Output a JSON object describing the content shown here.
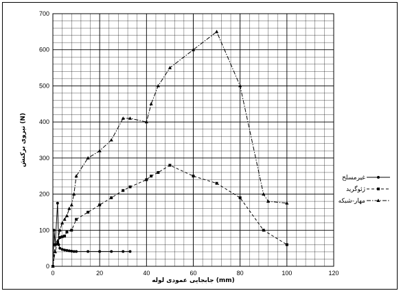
{
  "chart_data": {
    "type": "line",
    "title": "",
    "xlabel": "جابجایی عمودی لوله (mm)",
    "ylabel": "نیروی برکنش (N)",
    "xlim": [
      0,
      120
    ],
    "ylim": [
      0,
      700
    ],
    "x_ticks": [
      0,
      20,
      40,
      60,
      80,
      100,
      120
    ],
    "y_ticks": [
      0,
      100,
      200,
      300,
      400,
      500,
      600,
      700
    ],
    "grid": "on",
    "legend_position": "right",
    "series": [
      {
        "name": "غیرمسلح",
        "marker": "circle",
        "dash": "solid",
        "points": [
          [
            0,
            0
          ],
          [
            0.5,
            100
          ],
          [
            1,
            60
          ],
          [
            2,
            175
          ],
          [
            2.5,
            60
          ],
          [
            3,
            50
          ],
          [
            4,
            47
          ],
          [
            5,
            45
          ],
          [
            6,
            44
          ],
          [
            7,
            43
          ],
          [
            8,
            42
          ],
          [
            9,
            41
          ],
          [
            10,
            41
          ],
          [
            15,
            41
          ],
          [
            20,
            41
          ],
          [
            25,
            41
          ],
          [
            30,
            41
          ],
          [
            33,
            41
          ]
        ]
      },
      {
        "name": "ژئوگرید",
        "marker": "square",
        "dash": "dashed",
        "points": [
          [
            0,
            0
          ],
          [
            1,
            60
          ],
          [
            2,
            62
          ],
          [
            3,
            80
          ],
          [
            4,
            82
          ],
          [
            5,
            84
          ],
          [
            6,
            95
          ],
          [
            8,
            100
          ],
          [
            10,
            130
          ],
          [
            15,
            150
          ],
          [
            20,
            170
          ],
          [
            25,
            190
          ],
          [
            30,
            210
          ],
          [
            33,
            220
          ],
          [
            40,
            240
          ],
          [
            42,
            250
          ],
          [
            45,
            260
          ],
          [
            50,
            280
          ],
          [
            60,
            250
          ],
          [
            70,
            230
          ],
          [
            80,
            190
          ],
          [
            90,
            100
          ],
          [
            100,
            60
          ]
        ]
      },
      {
        "name": "مهار-شبکه",
        "marker": "triangle",
        "dash": "dashdot",
        "points": [
          [
            0,
            0
          ],
          [
            1,
            40
          ],
          [
            2,
            70
          ],
          [
            3,
            100
          ],
          [
            4,
            120
          ],
          [
            5,
            130
          ],
          [
            6,
            140
          ],
          [
            7,
            160
          ],
          [
            8,
            170
          ],
          [
            9,
            200
          ],
          [
            10,
            250
          ],
          [
            15,
            300
          ],
          [
            20,
            320
          ],
          [
            25,
            350
          ],
          [
            30,
            410
          ],
          [
            33,
            410
          ],
          [
            40,
            400
          ],
          [
            42,
            450
          ],
          [
            45,
            500
          ],
          [
            50,
            550
          ],
          [
            60,
            600
          ],
          [
            70,
            650
          ],
          [
            80,
            500
          ],
          [
            90,
            200
          ],
          [
            92,
            180
          ],
          [
            100,
            175
          ]
        ]
      }
    ]
  }
}
